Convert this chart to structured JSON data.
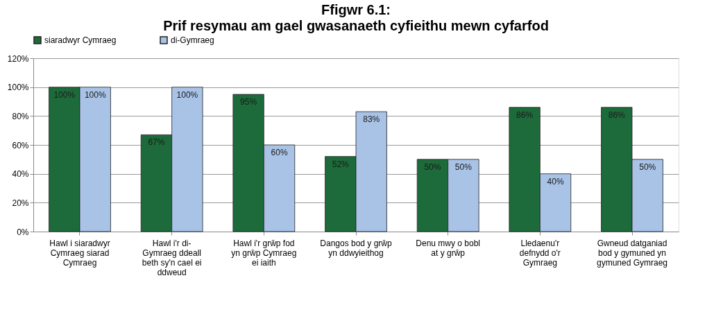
{
  "chart_data": {
    "type": "bar",
    "title": "Ffigwr 6.1:",
    "subtitle": "Prif resymau am gael gwasanaeth cyfieithu mewn cyfarfod",
    "categories": [
      "Hawl i siaradwyr Cymraeg siarad Cymraeg",
      "Hawl i'r di-Gymraeg ddeall beth sy'n cael ei ddweud",
      "Hawl i'r grŵp fod yn grŵp Cymraeg ei iaith",
      "Dangos bod y grŵp yn ddwyieithog",
      "Denu mwy o bobl at y grŵp",
      "Lledaenu'r defnydd o'r Gymraeg",
      "Gwneud datganiad bod y gymuned yn gymuned Gymraeg"
    ],
    "series": [
      {
        "name": "siaradwyr Cymraeg",
        "color": "#1d6b3a",
        "values": [
          100,
          67,
          95,
          52,
          50,
          86,
          86
        ],
        "value_labels": [
          "100%",
          "67%",
          "95%",
          "52%",
          "50%",
          "86%",
          "86%"
        ]
      },
      {
        "name": "di-Gymraeg",
        "color": "#a8c3e6",
        "values": [
          100,
          100,
          60,
          83,
          50,
          40,
          50
        ],
        "value_labels": [
          "100%",
          "100%",
          "60%",
          "83%",
          "50%",
          "40%",
          "50%"
        ]
      }
    ],
    "ylim": [
      0,
      120
    ],
    "yticks": [
      {
        "value": 0,
        "label": "0%"
      },
      {
        "value": 20,
        "label": "20%"
      },
      {
        "value": 40,
        "label": "40%"
      },
      {
        "value": 60,
        "label": "60%"
      },
      {
        "value": 80,
        "label": "80%"
      },
      {
        "value": 100,
        "label": "100%"
      },
      {
        "value": 120,
        "label": "120%"
      }
    ],
    "grid": "y",
    "legend": "top"
  }
}
